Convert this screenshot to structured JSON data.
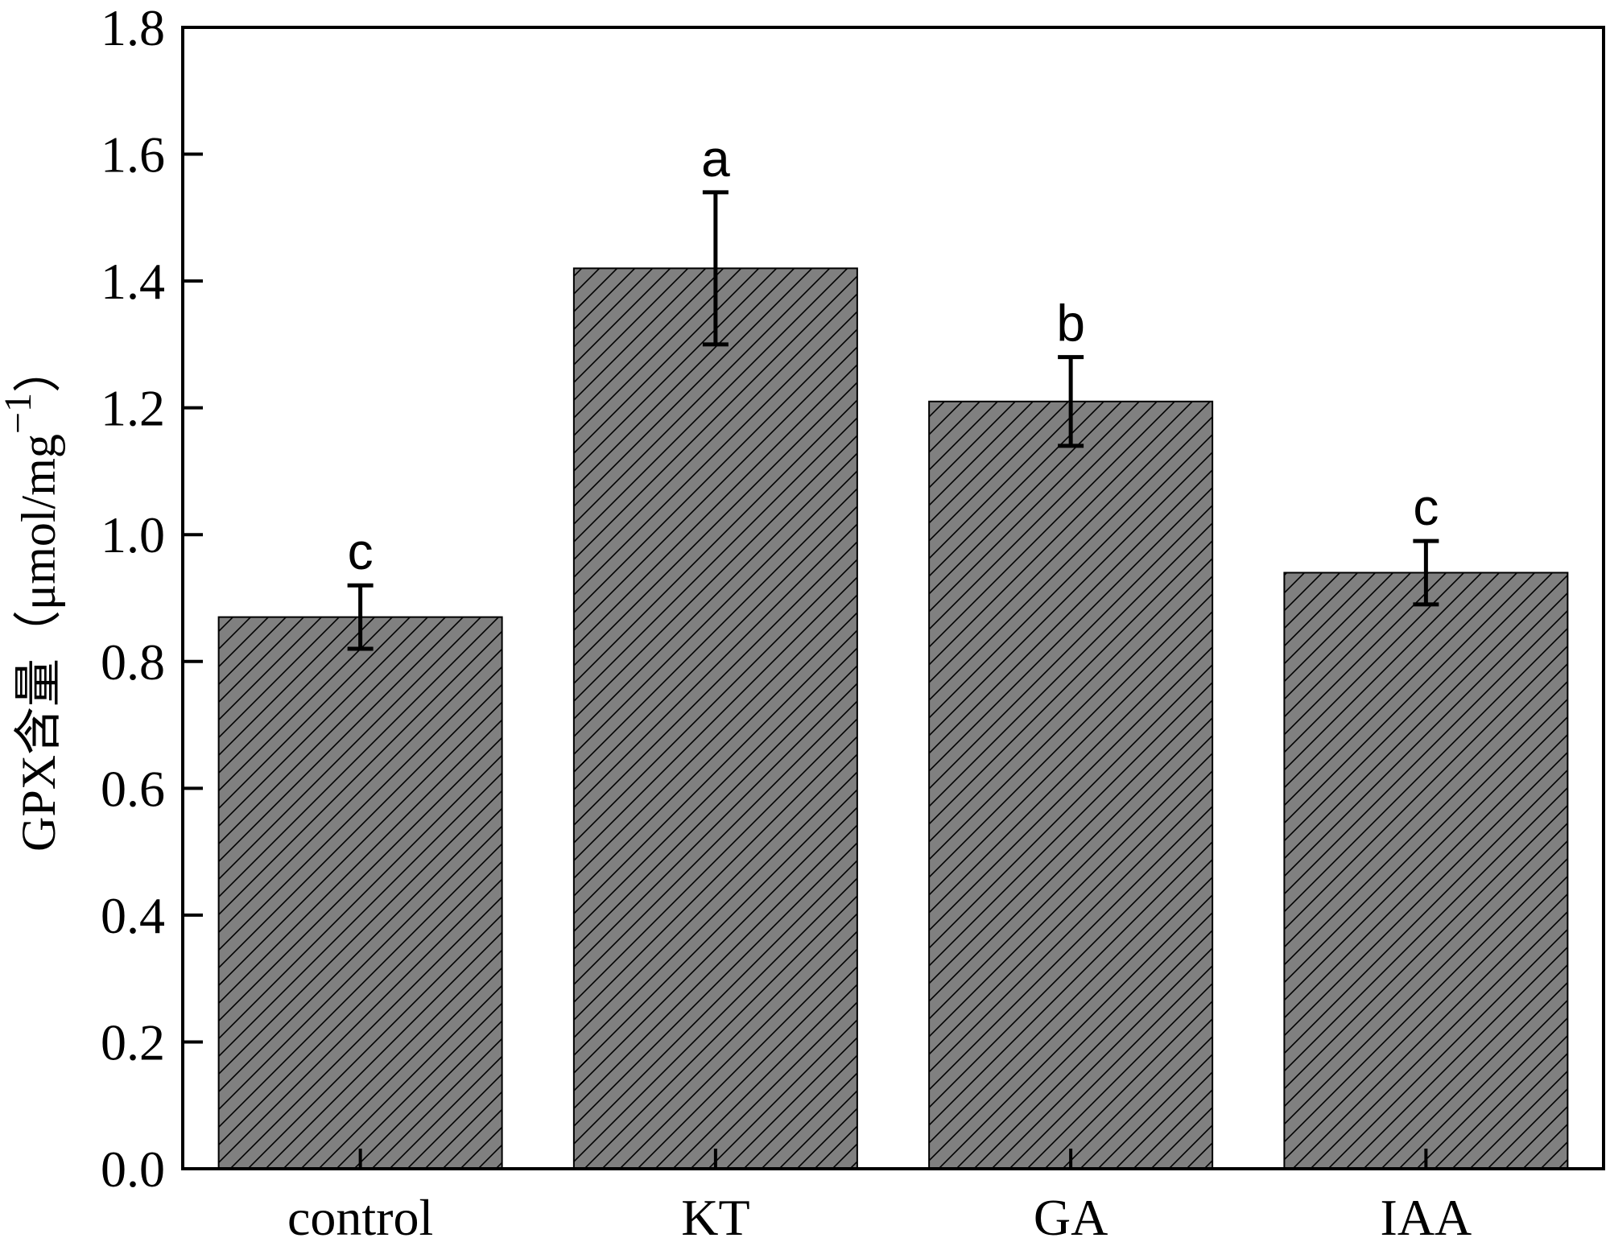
{
  "chart_data": {
    "type": "bar",
    "title": "",
    "xlabel": "",
    "ylabel": "GPX含量（μmol/mg−1）",
    "ylabel_parts": {
      "main": "GPX含量（μmol/mg",
      "sup": "−1",
      "close": "）"
    },
    "ylim": [
      0,
      1.8
    ],
    "yticks": [
      "0.0",
      "0.2",
      "0.4",
      "0.6",
      "0.8",
      "1.0",
      "1.2",
      "1.4",
      "1.6",
      "1.8"
    ],
    "categories": [
      "control",
      "KT",
      "GA",
      "IAA"
    ],
    "values": [
      0.87,
      1.42,
      1.21,
      0.94
    ],
    "errors": [
      0.05,
      0.12,
      0.07,
      0.05
    ],
    "significance": [
      "c",
      "a",
      "b",
      "c"
    ],
    "bar_color": "#808080",
    "hatch": "diagonal",
    "grid": false,
    "legend": "none"
  }
}
